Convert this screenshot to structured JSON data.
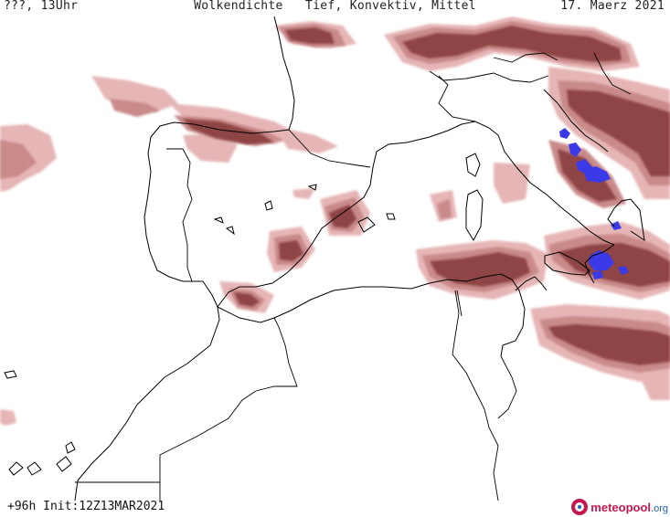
{
  "header": {
    "location_time": "???, 13Uhr",
    "title": "Wolkendichte   Tief, Konvektiv, Mittel",
    "date": "17. Maerz 2021"
  },
  "footer": {
    "run_info": "+96h Init:12Z13MAR2021",
    "brand_main": "meteopool",
    "brand_suffix": ".org"
  },
  "legend_colors": {
    "cloud_light": "#e6b6b6",
    "cloud_medium": "#c98a8a",
    "cloud_dense": "#8f4545",
    "convective": "#3a3ae8",
    "coastline": "#000000"
  }
}
